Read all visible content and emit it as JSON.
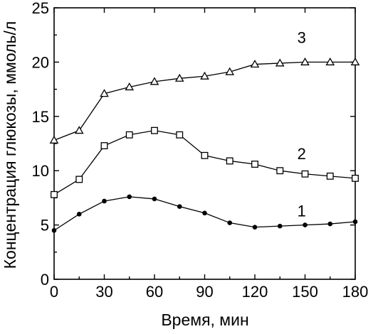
{
  "chart_data": {
    "type": "line",
    "xlabel": "Время, мин",
    "ylabel": "Концентрация глюкозы, ммоль/л",
    "xlim": [
      0,
      180
    ],
    "ylim": [
      0,
      25
    ],
    "xticks": [
      0,
      30,
      60,
      90,
      120,
      150,
      180
    ],
    "yticks": [
      0,
      5,
      10,
      15,
      20,
      25
    ],
    "grid": false,
    "x": [
      0,
      15,
      30,
      45,
      60,
      75,
      90,
      105,
      120,
      135,
      150,
      165,
      180
    ],
    "series": [
      {
        "name": "3",
        "marker": "triangle-open",
        "values": [
          12.8,
          13.7,
          17.1,
          17.7,
          18.2,
          18.5,
          18.7,
          19.1,
          19.8,
          19.9,
          20.0,
          20.0,
          20.0
        ]
      },
      {
        "name": "2",
        "marker": "square-open",
        "values": [
          7.8,
          9.2,
          12.3,
          13.3,
          13.7,
          13.3,
          11.4,
          10.9,
          10.6,
          10.0,
          9.7,
          9.5,
          9.3
        ]
      },
      {
        "name": "1",
        "marker": "circle-filled",
        "values": [
          4.5,
          6.0,
          7.2,
          7.6,
          7.4,
          6.7,
          6.1,
          5.2,
          4.8,
          4.9,
          5.0,
          5.1,
          5.3
        ]
      }
    ]
  }
}
